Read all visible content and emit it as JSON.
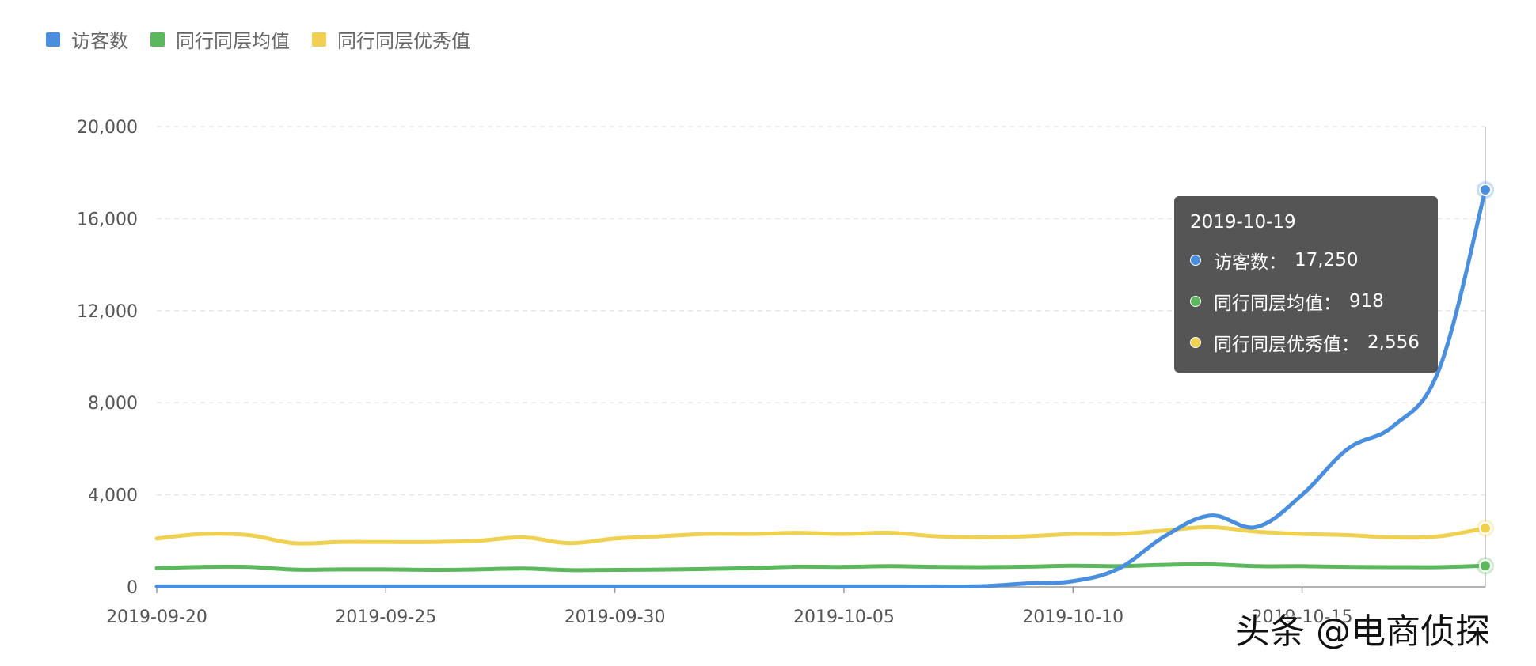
{
  "legend": {
    "items": [
      {
        "label": "访客数",
        "color": "#4a8ee0"
      },
      {
        "label": "同行同层均值",
        "color": "#5cb85c"
      },
      {
        "label": "同行同层优秀值",
        "color": "#f0d050"
      }
    ]
  },
  "tooltip": {
    "date": "2019-10-19",
    "sep": "：",
    "rows": [
      {
        "name": "访客数",
        "value": "17,250",
        "color": "#4a8ee0"
      },
      {
        "name": "同行同层均值",
        "value": "918",
        "color": "#5cb85c"
      },
      {
        "name": "同行同层优秀值",
        "value": "2,556",
        "color": "#f0d050"
      }
    ]
  },
  "watermark": "头条 @电商侦探",
  "chart_data": {
    "type": "line",
    "x": [
      "2019-09-20",
      "2019-09-21",
      "2019-09-22",
      "2019-09-23",
      "2019-09-24",
      "2019-09-25",
      "2019-09-26",
      "2019-09-27",
      "2019-09-28",
      "2019-09-29",
      "2019-09-30",
      "2019-10-01",
      "2019-10-02",
      "2019-10-03",
      "2019-10-04",
      "2019-10-05",
      "2019-10-06",
      "2019-10-07",
      "2019-10-08",
      "2019-10-09",
      "2019-10-10",
      "2019-10-11",
      "2019-10-12",
      "2019-10-13",
      "2019-10-14",
      "2019-10-15",
      "2019-10-16",
      "2019-10-17",
      "2019-10-18",
      "2019-10-19"
    ],
    "x_tick_labels": [
      "2019-09-20",
      "2019-09-25",
      "2019-09-30",
      "2019-10-05",
      "2019-10-10",
      "2019-10-15"
    ],
    "x_tick_indices": [
      0,
      5,
      10,
      15,
      20,
      25
    ],
    "y_ticks": [
      0,
      4000,
      8000,
      12000,
      16000,
      20000
    ],
    "y_tick_labels": [
      "0",
      "4,000",
      "8,000",
      "12,000",
      "16,000",
      "20,000"
    ],
    "ylim": [
      0,
      20000
    ],
    "grid": "horizontal-dashed",
    "legend_position": "top-left",
    "series": [
      {
        "name": "访客数",
        "color": "#4a8ee0",
        "values": [
          20,
          20,
          20,
          20,
          20,
          20,
          20,
          20,
          20,
          20,
          20,
          20,
          20,
          20,
          20,
          20,
          20,
          20,
          30,
          150,
          250,
          800,
          2200,
          3100,
          2600,
          4000,
          6000,
          7000,
          9500,
          17250
        ]
      },
      {
        "name": "同行同层均值",
        "color": "#5cb85c",
        "values": [
          820,
          870,
          870,
          750,
          760,
          760,
          740,
          760,
          800,
          730,
          740,
          750,
          780,
          820,
          880,
          870,
          900,
          870,
          860,
          880,
          920,
          900,
          960,
          980,
          900,
          900,
          870,
          860,
          860,
          918
        ]
      },
      {
        "name": "同行同层优秀值",
        "color": "#f0d050",
        "values": [
          2100,
          2300,
          2250,
          1900,
          1950,
          1950,
          1950,
          2000,
          2150,
          1900,
          2100,
          2200,
          2300,
          2300,
          2350,
          2300,
          2350,
          2200,
          2150,
          2200,
          2300,
          2300,
          2450,
          2600,
          2400,
          2300,
          2250,
          2150,
          2200,
          2556
        ]
      }
    ]
  }
}
